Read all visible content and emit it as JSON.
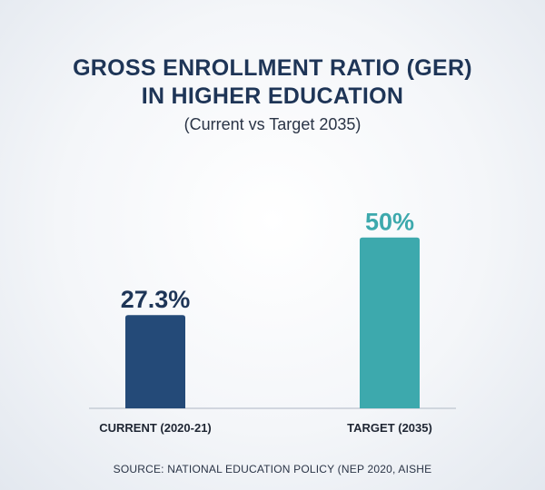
{
  "title": {
    "line1": "GROSS ENROLLMENT RATIO (GER)",
    "line2": "IN HIGHER EDUCATION",
    "subtitle": "(Current vs Target 2035)"
  },
  "source": "SOURCE: NATIONAL EDUCATION POLICY (NEP 2020, AISHE",
  "colors": {
    "current": "#244a78",
    "target": "#3da9ad",
    "title": "#1e3557",
    "axis": "#c5ccd6"
  },
  "chart_data": {
    "type": "bar",
    "title": "GROSS ENROLLMENT RATIO (GER) IN HIGHER EDUCATION",
    "subtitle": "(Current vs Target 2035)",
    "categories": [
      "CURRENT (2020-21)",
      "TARGET (2035)"
    ],
    "values": [
      27.3,
      50
    ],
    "value_labels": [
      "27.3%",
      "50%"
    ],
    "bar_colors": [
      "#244a78",
      "#3da9ad"
    ],
    "xlabel": "",
    "ylabel": "",
    "ylim": [
      0,
      66.4
    ],
    "grid": false,
    "legend": "none"
  }
}
